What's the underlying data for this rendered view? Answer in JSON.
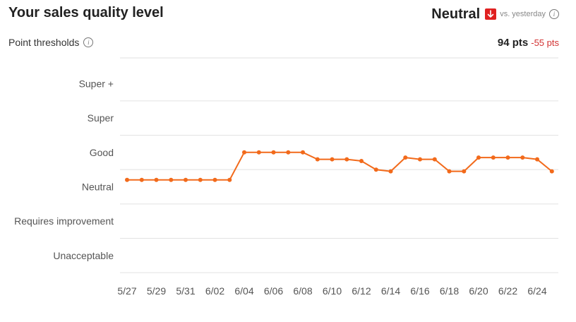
{
  "header": {
    "title": "Your sales quality level",
    "status": "Neutral",
    "status_arrow_icon": "arrow-down-icon",
    "comparison": "vs. yesterday",
    "info_icon": "info-icon"
  },
  "subheader": {
    "thresholds_label": "Point thresholds",
    "points": "94 pts",
    "points_change": "-55 pts"
  },
  "colors": {
    "line": "#f26a1b",
    "down_badge": "#e02020",
    "negative_text": "#d23232",
    "grid": "#e2e2e2"
  },
  "chart_data": {
    "type": "line",
    "title": "",
    "xlabel": "",
    "ylabel": "",
    "y_categories": [
      "Unacceptable",
      "Requires improvement",
      "Neutral",
      "Good",
      "Super",
      "Super +"
    ],
    "ylim": [
      -0.25,
      5.75
    ],
    "x_ticks": [
      "5/27",
      "5/29",
      "5/31",
      "6/02",
      "6/04",
      "6/06",
      "6/08",
      "6/10",
      "6/12",
      "6/14",
      "6/16",
      "6/18",
      "6/20",
      "6/22",
      "6/24"
    ],
    "x": [
      "5/27",
      "5/28",
      "5/29",
      "5/30",
      "5/31",
      "6/01",
      "6/02",
      "6/03",
      "6/04",
      "6/05",
      "6/06",
      "6/07",
      "6/08",
      "6/09",
      "6/10",
      "6/11",
      "6/12",
      "6/13",
      "6/14",
      "6/15",
      "6/16",
      "6/17",
      "6/18",
      "6/19",
      "6/20",
      "6/21",
      "6/22",
      "6/23",
      "6/24",
      "6/25"
    ],
    "series": [
      {
        "values": [
          2.2,
          2.2,
          2.2,
          2.2,
          2.2,
          2.2,
          2.2,
          2.2,
          3.0,
          3.0,
          3.0,
          3.0,
          3.0,
          2.8,
          2.8,
          2.8,
          2.75,
          2.5,
          2.45,
          2.85,
          2.8,
          2.8,
          2.45,
          2.45,
          2.85,
          2.85,
          2.85,
          2.85,
          2.8,
          2.45
        ]
      }
    ],
    "grid": true,
    "legend": "none"
  }
}
